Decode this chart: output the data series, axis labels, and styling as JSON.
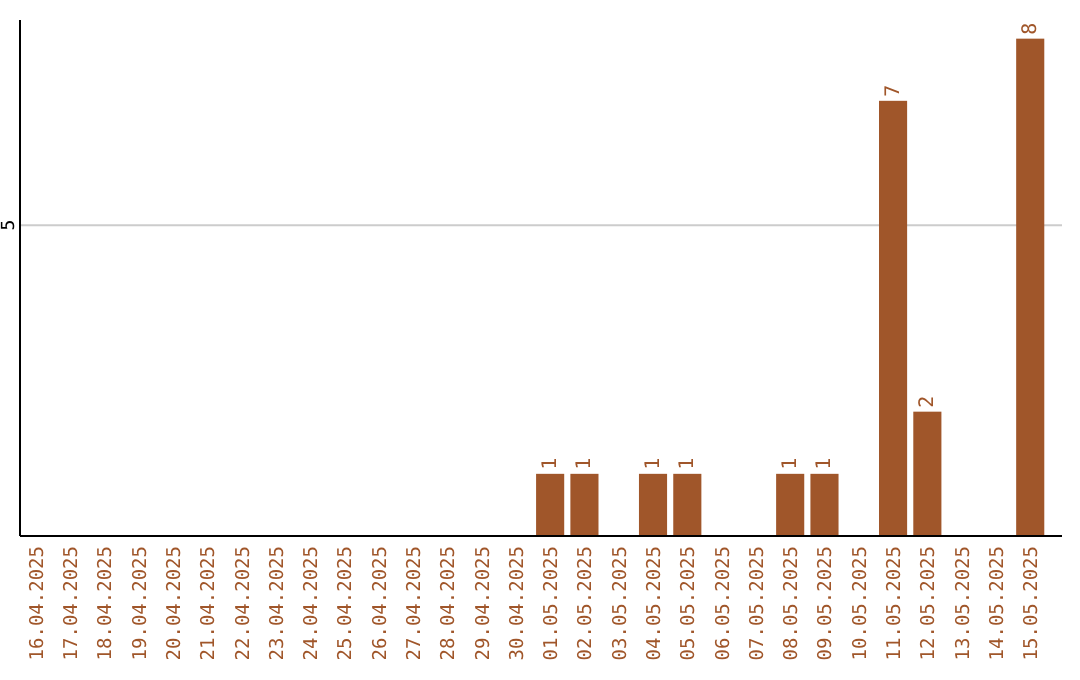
{
  "chart_data": {
    "type": "bar",
    "categories": [
      "16.04.2025",
      "17.04.2025",
      "18.04.2025",
      "19.04.2025",
      "20.04.2025",
      "21.04.2025",
      "22.04.2025",
      "23.04.2025",
      "24.04.2025",
      "25.04.2025",
      "26.04.2025",
      "27.04.2025",
      "28.04.2025",
      "29.04.2025",
      "30.04.2025",
      "01.05.2025",
      "02.05.2025",
      "03.05.2025",
      "04.05.2025",
      "05.05.2025",
      "06.05.2025",
      "07.05.2025",
      "08.05.2025",
      "09.05.2025",
      "10.05.2025",
      "11.05.2025",
      "12.05.2025",
      "13.05.2025",
      "14.05.2025",
      "15.05.2025"
    ],
    "values": [
      null,
      null,
      null,
      null,
      null,
      null,
      null,
      null,
      null,
      null,
      null,
      null,
      null,
      null,
      null,
      1,
      1,
      null,
      1,
      1,
      null,
      null,
      1,
      1,
      null,
      7,
      2,
      null,
      null,
      8
    ],
    "data_labels": true,
    "color": "#a0562a",
    "ylim": [
      0,
      8.3
    ],
    "yticks": [
      {
        "value": 0,
        "label": null
      },
      5
    ],
    "grid": "y"
  }
}
